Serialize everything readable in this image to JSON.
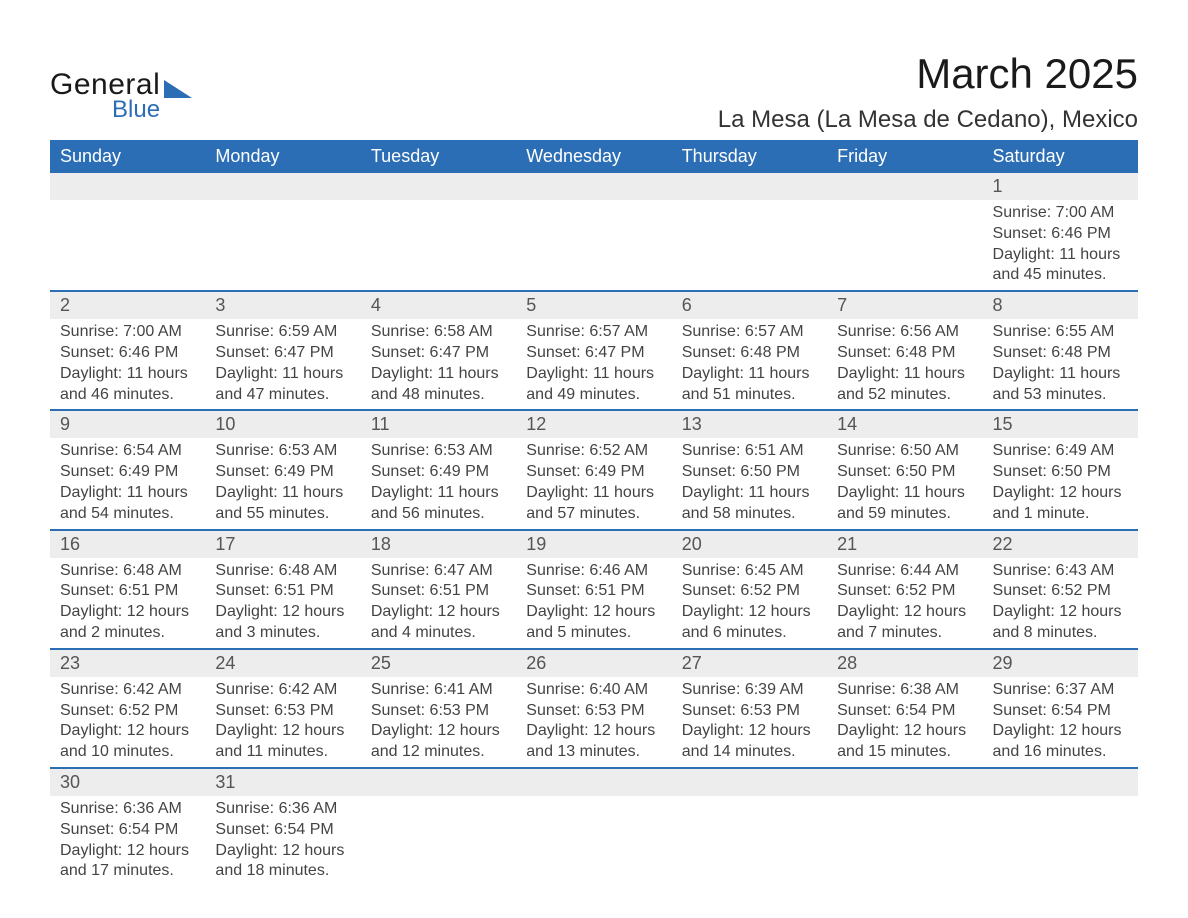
{
  "logo": {
    "general": "General",
    "blue": "Blue"
  },
  "title": "March 2025",
  "location": "La Mesa (La Mesa de Cedano), Mexico",
  "colors": {
    "header_bg": "#2c6eb5",
    "header_text": "#ffffff",
    "date_bg": "#ededed",
    "date_text": "#555555",
    "body_text": "#444444",
    "divider": "#2c6eb5",
    "page_bg": "#ffffff",
    "logo_accent": "#2c6eb5",
    "title_text": "#1a1a1a"
  },
  "typography": {
    "title_fontsize": 42,
    "location_fontsize": 24,
    "header_fontsize": 18,
    "date_fontsize": 18,
    "detail_fontsize": 16,
    "font_family": "Arial"
  },
  "day_headers": [
    "Sunday",
    "Monday",
    "Tuesday",
    "Wednesday",
    "Thursday",
    "Friday",
    "Saturday"
  ],
  "weeks": [
    {
      "dates": [
        "",
        "",
        "",
        "",
        "",
        "",
        "1"
      ],
      "details": [
        null,
        null,
        null,
        null,
        null,
        null,
        {
          "sunrise": "Sunrise: 7:00 AM",
          "sunset": "Sunset: 6:46 PM",
          "dl1": "Daylight: 11 hours",
          "dl2": "and 45 minutes."
        }
      ]
    },
    {
      "dates": [
        "2",
        "3",
        "4",
        "5",
        "6",
        "7",
        "8"
      ],
      "details": [
        {
          "sunrise": "Sunrise: 7:00 AM",
          "sunset": "Sunset: 6:46 PM",
          "dl1": "Daylight: 11 hours",
          "dl2": "and 46 minutes."
        },
        {
          "sunrise": "Sunrise: 6:59 AM",
          "sunset": "Sunset: 6:47 PM",
          "dl1": "Daylight: 11 hours",
          "dl2": "and 47 minutes."
        },
        {
          "sunrise": "Sunrise: 6:58 AM",
          "sunset": "Sunset: 6:47 PM",
          "dl1": "Daylight: 11 hours",
          "dl2": "and 48 minutes."
        },
        {
          "sunrise": "Sunrise: 6:57 AM",
          "sunset": "Sunset: 6:47 PM",
          "dl1": "Daylight: 11 hours",
          "dl2": "and 49 minutes."
        },
        {
          "sunrise": "Sunrise: 6:57 AM",
          "sunset": "Sunset: 6:48 PM",
          "dl1": "Daylight: 11 hours",
          "dl2": "and 51 minutes."
        },
        {
          "sunrise": "Sunrise: 6:56 AM",
          "sunset": "Sunset: 6:48 PM",
          "dl1": "Daylight: 11 hours",
          "dl2": "and 52 minutes."
        },
        {
          "sunrise": "Sunrise: 6:55 AM",
          "sunset": "Sunset: 6:48 PM",
          "dl1": "Daylight: 11 hours",
          "dl2": "and 53 minutes."
        }
      ]
    },
    {
      "dates": [
        "9",
        "10",
        "11",
        "12",
        "13",
        "14",
        "15"
      ],
      "details": [
        {
          "sunrise": "Sunrise: 6:54 AM",
          "sunset": "Sunset: 6:49 PM",
          "dl1": "Daylight: 11 hours",
          "dl2": "and 54 minutes."
        },
        {
          "sunrise": "Sunrise: 6:53 AM",
          "sunset": "Sunset: 6:49 PM",
          "dl1": "Daylight: 11 hours",
          "dl2": "and 55 minutes."
        },
        {
          "sunrise": "Sunrise: 6:53 AM",
          "sunset": "Sunset: 6:49 PM",
          "dl1": "Daylight: 11 hours",
          "dl2": "and 56 minutes."
        },
        {
          "sunrise": "Sunrise: 6:52 AM",
          "sunset": "Sunset: 6:49 PM",
          "dl1": "Daylight: 11 hours",
          "dl2": "and 57 minutes."
        },
        {
          "sunrise": "Sunrise: 6:51 AM",
          "sunset": "Sunset: 6:50 PM",
          "dl1": "Daylight: 11 hours",
          "dl2": "and 58 minutes."
        },
        {
          "sunrise": "Sunrise: 6:50 AM",
          "sunset": "Sunset: 6:50 PM",
          "dl1": "Daylight: 11 hours",
          "dl2": "and 59 minutes."
        },
        {
          "sunrise": "Sunrise: 6:49 AM",
          "sunset": "Sunset: 6:50 PM",
          "dl1": "Daylight: 12 hours",
          "dl2": "and 1 minute."
        }
      ]
    },
    {
      "dates": [
        "16",
        "17",
        "18",
        "19",
        "20",
        "21",
        "22"
      ],
      "details": [
        {
          "sunrise": "Sunrise: 6:48 AM",
          "sunset": "Sunset: 6:51 PM",
          "dl1": "Daylight: 12 hours",
          "dl2": "and 2 minutes."
        },
        {
          "sunrise": "Sunrise: 6:48 AM",
          "sunset": "Sunset: 6:51 PM",
          "dl1": "Daylight: 12 hours",
          "dl2": "and 3 minutes."
        },
        {
          "sunrise": "Sunrise: 6:47 AM",
          "sunset": "Sunset: 6:51 PM",
          "dl1": "Daylight: 12 hours",
          "dl2": "and 4 minutes."
        },
        {
          "sunrise": "Sunrise: 6:46 AM",
          "sunset": "Sunset: 6:51 PM",
          "dl1": "Daylight: 12 hours",
          "dl2": "and 5 minutes."
        },
        {
          "sunrise": "Sunrise: 6:45 AM",
          "sunset": "Sunset: 6:52 PM",
          "dl1": "Daylight: 12 hours",
          "dl2": "and 6 minutes."
        },
        {
          "sunrise": "Sunrise: 6:44 AM",
          "sunset": "Sunset: 6:52 PM",
          "dl1": "Daylight: 12 hours",
          "dl2": "and 7 minutes."
        },
        {
          "sunrise": "Sunrise: 6:43 AM",
          "sunset": "Sunset: 6:52 PM",
          "dl1": "Daylight: 12 hours",
          "dl2": "and 8 minutes."
        }
      ]
    },
    {
      "dates": [
        "23",
        "24",
        "25",
        "26",
        "27",
        "28",
        "29"
      ],
      "details": [
        {
          "sunrise": "Sunrise: 6:42 AM",
          "sunset": "Sunset: 6:52 PM",
          "dl1": "Daylight: 12 hours",
          "dl2": "and 10 minutes."
        },
        {
          "sunrise": "Sunrise: 6:42 AM",
          "sunset": "Sunset: 6:53 PM",
          "dl1": "Daylight: 12 hours",
          "dl2": "and 11 minutes."
        },
        {
          "sunrise": "Sunrise: 6:41 AM",
          "sunset": "Sunset: 6:53 PM",
          "dl1": "Daylight: 12 hours",
          "dl2": "and 12 minutes."
        },
        {
          "sunrise": "Sunrise: 6:40 AM",
          "sunset": "Sunset: 6:53 PM",
          "dl1": "Daylight: 12 hours",
          "dl2": "and 13 minutes."
        },
        {
          "sunrise": "Sunrise: 6:39 AM",
          "sunset": "Sunset: 6:53 PM",
          "dl1": "Daylight: 12 hours",
          "dl2": "and 14 minutes."
        },
        {
          "sunrise": "Sunrise: 6:38 AM",
          "sunset": "Sunset: 6:54 PM",
          "dl1": "Daylight: 12 hours",
          "dl2": "and 15 minutes."
        },
        {
          "sunrise": "Sunrise: 6:37 AM",
          "sunset": "Sunset: 6:54 PM",
          "dl1": "Daylight: 12 hours",
          "dl2": "and 16 minutes."
        }
      ]
    },
    {
      "dates": [
        "30",
        "31",
        "",
        "",
        "",
        "",
        ""
      ],
      "details": [
        {
          "sunrise": "Sunrise: 6:36 AM",
          "sunset": "Sunset: 6:54 PM",
          "dl1": "Daylight: 12 hours",
          "dl2": "and 17 minutes."
        },
        {
          "sunrise": "Sunrise: 6:36 AM",
          "sunset": "Sunset: 6:54 PM",
          "dl1": "Daylight: 12 hours",
          "dl2": "and 18 minutes."
        },
        null,
        null,
        null,
        null,
        null
      ]
    }
  ]
}
